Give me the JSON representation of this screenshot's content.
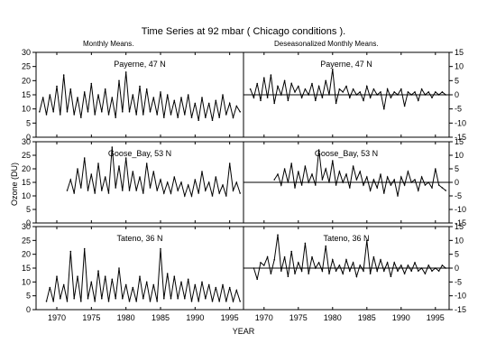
{
  "figure": {
    "title": "Time Series at  92 mbar  ( Chicago conditions ).",
    "left_subtitle": "Monthly Means.",
    "right_subtitle": "Deseasonalized Monthly Means.",
    "ylabel": "Ozone (DU)",
    "xlabel": "YEAR"
  },
  "chart_data": [
    {
      "type": "line",
      "panel": "left-top",
      "label": "Payerne, 47 N",
      "xlim": [
        1967,
        1997
      ],
      "ylim": [
        0,
        30
      ],
      "x_ticks": [
        1970,
        1975,
        1980,
        1985,
        1990,
        1995
      ],
      "y_ticks": [
        0,
        5,
        10,
        15,
        20,
        25,
        30
      ],
      "ylim_shown_on": "left",
      "x": [
        1967.5,
        1968,
        1968.5,
        1969,
        1969.5,
        1970,
        1970.5,
        1971,
        1971.5,
        1972,
        1972.5,
        1973,
        1973.5,
        1974,
        1974.5,
        1975,
        1975.5,
        1976,
        1976.5,
        1977,
        1977.5,
        1978,
        1978.5,
        1979,
        1979.5,
        1980,
        1980.5,
        1981,
        1981.5,
        1982,
        1982.5,
        1983,
        1983.5,
        1984,
        1984.5,
        1985,
        1985.5,
        1986,
        1986.5,
        1987,
        1987.5,
        1988,
        1988.5,
        1989,
        1989.5,
        1990,
        1990.5,
        1991,
        1991.5,
        1992,
        1992.5,
        1993,
        1993.5,
        1994,
        1994.5,
        1995,
        1995.5,
        1996,
        1996.5
      ],
      "y": [
        9,
        14,
        8,
        15,
        9,
        18,
        8,
        22,
        9,
        17,
        8,
        14,
        7,
        16,
        9,
        19,
        8,
        15,
        9,
        17,
        8,
        14,
        7,
        20,
        9,
        23,
        9,
        15,
        8,
        18,
        8,
        17,
        9,
        14,
        8,
        16,
        7,
        15,
        8,
        13,
        7,
        14,
        8,
        15,
        7,
        12,
        6,
        14,
        7,
        12,
        6,
        13,
        7,
        15,
        8,
        12,
        7,
        11,
        9
      ]
    },
    {
      "type": "line",
      "panel": "left-middle",
      "label": "Goose_Bay, 53 N",
      "xlim": [
        1967,
        1997
      ],
      "ylim": [
        0,
        30
      ],
      "x_ticks": [
        1970,
        1975,
        1980,
        1985,
        1990,
        1995
      ],
      "y_ticks": [
        0,
        5,
        10,
        15,
        20,
        25,
        30
      ],
      "x": [
        1971.5,
        1972,
        1972.5,
        1973,
        1973.5,
        1974,
        1974.5,
        1975,
        1975.5,
        1976,
        1976.5,
        1977,
        1977.5,
        1978,
        1978.5,
        1979,
        1979.5,
        1980,
        1980.5,
        1981,
        1981.5,
        1982,
        1982.5,
        1983,
        1983.5,
        1984,
        1984.5,
        1985,
        1985.5,
        1986,
        1986.5,
        1987,
        1987.5,
        1988,
        1988.5,
        1989,
        1989.5,
        1990,
        1990.5,
        1991,
        1991.5,
        1992,
        1992.5,
        1993,
        1993.5,
        1994,
        1994.5,
        1995,
        1995.5,
        1996,
        1996.5
      ],
      "y": [
        12,
        16,
        11,
        20,
        13,
        24,
        12,
        18,
        11,
        22,
        12,
        17,
        11,
        28,
        13,
        21,
        12,
        24,
        12,
        19,
        12,
        17,
        11,
        22,
        13,
        19,
        12,
        16,
        11,
        15,
        11,
        17,
        12,
        15,
        10,
        14,
        10,
        16,
        11,
        19,
        12,
        15,
        10,
        17,
        11,
        14,
        10,
        22,
        12,
        15,
        11
      ]
    },
    {
      "type": "line",
      "panel": "left-bottom",
      "label": "Tateno, 36 N",
      "xlim": [
        1967,
        1997
      ],
      "ylim": [
        0,
        30
      ],
      "x_ticks": [
        1970,
        1975,
        1980,
        1985,
        1990,
        1995
      ],
      "y_ticks": [
        0,
        5,
        10,
        15,
        20,
        25,
        30
      ],
      "x": [
        1968.5,
        1969,
        1969.5,
        1970,
        1970.5,
        1971,
        1971.5,
        1972,
        1972.5,
        1973,
        1973.5,
        1974,
        1974.5,
        1975,
        1975.5,
        1976,
        1976.5,
        1977,
        1977.5,
        1978,
        1978.5,
        1979,
        1979.5,
        1980,
        1980.5,
        1981,
        1981.5,
        1982,
        1982.5,
        1983,
        1983.5,
        1984,
        1984.5,
        1985,
        1985.5,
        1986,
        1986.5,
        1987,
        1987.5,
        1988,
        1988.5,
        1989,
        1989.5,
        1990,
        1990.5,
        1991,
        1991.5,
        1992,
        1992.5,
        1993,
        1993.5,
        1994,
        1994.5,
        1995,
        1995.5,
        1996,
        1996.5
      ],
      "y": [
        3,
        8,
        3,
        12,
        4,
        9,
        3,
        21,
        4,
        12,
        3,
        22,
        4,
        10,
        3,
        14,
        4,
        12,
        3,
        11,
        4,
        15,
        4,
        9,
        3,
        8,
        3,
        12,
        4,
        10,
        3,
        9,
        3,
        22,
        4,
        13,
        4,
        12,
        4,
        10,
        4,
        11,
        3,
        9,
        3,
        10,
        4,
        9,
        3,
        8,
        3,
        9,
        3,
        8,
        3,
        7,
        3
      ]
    },
    {
      "type": "line",
      "panel": "right-top",
      "label": "Payerne, 47 N",
      "xlim": [
        1967,
        1997
      ],
      "ylim": [
        -15,
        15
      ],
      "x_ticks": [
        1970,
        1975,
        1980,
        1985,
        1990,
        1995
      ],
      "y_ticks": [
        -15,
        -10,
        -5,
        0,
        5,
        10,
        15
      ],
      "x": [
        1968,
        1968.5,
        1969,
        1969.5,
        1970,
        1970.5,
        1971,
        1971.5,
        1972,
        1972.5,
        1973,
        1973.5,
        1974,
        1974.5,
        1975,
        1975.5,
        1976,
        1976.5,
        1977,
        1977.5,
        1978,
        1978.5,
        1979,
        1979.5,
        1980,
        1980.5,
        1981,
        1981.5,
        1982,
        1982.5,
        1983,
        1983.5,
        1984,
        1984.5,
        1985,
        1985.5,
        1986,
        1986.5,
        1987,
        1987.5,
        1988,
        1988.5,
        1989,
        1989.5,
        1990,
        1990.5,
        1991,
        1991.5,
        1992,
        1992.5,
        1993,
        1993.5,
        1994,
        1994.5,
        1995,
        1995.5,
        1996,
        1996.5
      ],
      "y": [
        2,
        -1,
        4,
        -2,
        6,
        -1,
        7,
        -3,
        3,
        0,
        5,
        -2,
        4,
        1,
        3,
        -1,
        2,
        0,
        4,
        -2,
        3,
        -1,
        5,
        0,
        9,
        -3,
        2,
        1,
        3,
        -1,
        2,
        0,
        1,
        -2,
        3,
        -1,
        2,
        0,
        1,
        -5,
        2,
        -1,
        1,
        0,
        2,
        -4,
        1,
        0,
        1,
        -2,
        2,
        0,
        1,
        -1,
        1,
        0,
        1,
        0
      ]
    },
    {
      "type": "line",
      "panel": "right-middle",
      "label": "Goose_Bay, 53 N",
      "xlim": [
        1967,
        1997
      ],
      "ylim": [
        -15,
        15
      ],
      "x_ticks": [
        1970,
        1975,
        1980,
        1985,
        1990,
        1995
      ],
      "y_ticks": [
        -15,
        -10,
        -5,
        0,
        5,
        10,
        15
      ],
      "x": [
        1971.5,
        1972,
        1972.5,
        1973,
        1973.5,
        1974,
        1974.5,
        1975,
        1975.5,
        1976,
        1976.5,
        1977,
        1977.5,
        1978,
        1978.5,
        1979,
        1979.5,
        1980,
        1980.5,
        1981,
        1981.5,
        1982,
        1982.5,
        1983,
        1983.5,
        1984,
        1984.5,
        1985,
        1985.5,
        1986,
        1986.5,
        1987,
        1987.5,
        1988,
        1988.5,
        1989,
        1989.5,
        1990,
        1990.5,
        1991,
        1991.5,
        1992,
        1992.5,
        1993,
        1993.5,
        1994,
        1994.5,
        1995,
        1995.5,
        1996,
        1996.5
      ],
      "y": [
        1,
        3,
        -1,
        5,
        0,
        7,
        -2,
        4,
        -1,
        6,
        0,
        3,
        -1,
        12,
        1,
        5,
        0,
        8,
        -1,
        4,
        0,
        3,
        -2,
        6,
        1,
        4,
        -1,
        2,
        -3,
        1,
        -2,
        3,
        -4,
        2,
        -1,
        1,
        -5,
        2,
        -1,
        4,
        0,
        1,
        -3,
        2,
        -1,
        0,
        -2,
        5,
        -1,
        -2,
        -3
      ]
    },
    {
      "type": "line",
      "panel": "right-bottom",
      "label": "Tateno, 36 N",
      "xlim": [
        1967,
        1997
      ],
      "ylim": [
        -15,
        15
      ],
      "x_ticks": [
        1970,
        1975,
        1980,
        1985,
        1990,
        1995
      ],
      "y_ticks": [
        -15,
        -10,
        -5,
        0,
        5,
        10,
        15
      ],
      "x": [
        1968.5,
        1969,
        1969.5,
        1970,
        1970.5,
        1971,
        1971.5,
        1972,
        1972.5,
        1973,
        1973.5,
        1974,
        1974.5,
        1975,
        1975.5,
        1976,
        1976.5,
        1977,
        1977.5,
        1978,
        1978.5,
        1979,
        1979.5,
        1980,
        1980.5,
        1981,
        1981.5,
        1982,
        1982.5,
        1983,
        1983.5,
        1984,
        1984.5,
        1985,
        1985.5,
        1986,
        1986.5,
        1987,
        1987.5,
        1988,
        1988.5,
        1989,
        1989.5,
        1990,
        1990.5,
        1991,
        1991.5,
        1992,
        1992.5,
        1993,
        1993.5,
        1994,
        1994.5,
        1995,
        1995.5,
        1996,
        1996.5
      ],
      "y": [
        0,
        -4,
        2,
        1,
        4,
        -2,
        3,
        12,
        -1,
        4,
        -3,
        6,
        -2,
        2,
        -1,
        9,
        -2,
        4,
        0,
        2,
        -1,
        8,
        -2,
        3,
        -1,
        1,
        -2,
        3,
        -1,
        2,
        -3,
        1,
        -1,
        10,
        -2,
        4,
        -1,
        3,
        -1,
        2,
        -3,
        2,
        -1,
        1,
        -2,
        1,
        -1,
        2,
        -1,
        0,
        -2,
        1,
        -1,
        0,
        -1,
        1,
        0
      ]
    }
  ]
}
